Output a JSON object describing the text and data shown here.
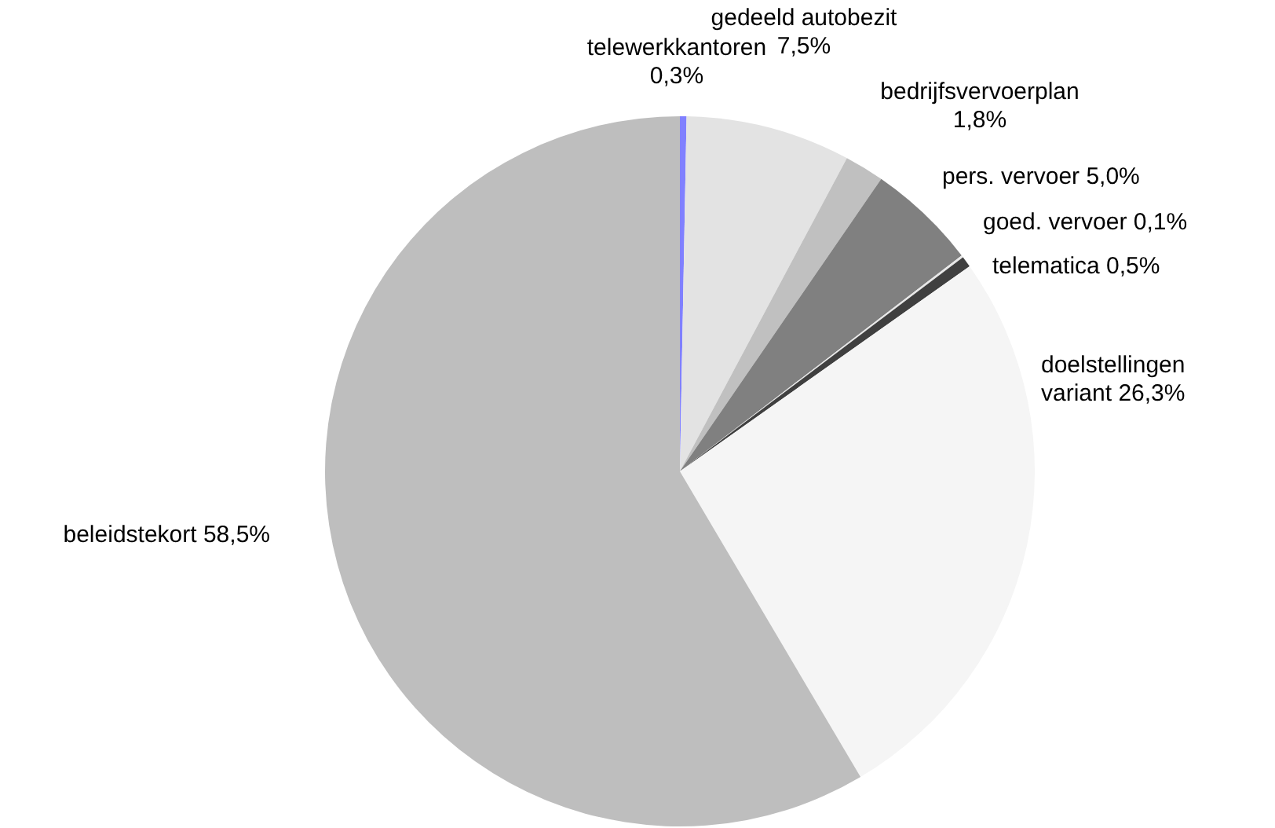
{
  "chart_data": {
    "type": "pie",
    "categories": [
      "telewerkkantoren",
      "gedeeld autobezit",
      "bedrijfsvervoerplan",
      "pers. vervoer",
      "goed. vervoer",
      "telematica",
      "doelstellingen variant",
      "beleidstekort"
    ],
    "values": [
      0.3,
      7.5,
      1.8,
      5.0,
      0.1,
      0.5,
      26.3,
      58.5
    ],
    "value_labels": [
      "0,3%",
      "7,5%",
      "1,8%",
      "5,0%",
      "0,1%",
      "0,5%",
      "26,3%",
      "58,5%"
    ],
    "colors": [
      "#8080ff",
      "#e3e3e3",
      "#c0c0c0",
      "#808080",
      "#e8e8e8",
      "#404040",
      "#f5f5f5",
      "#bebebe"
    ]
  }
}
